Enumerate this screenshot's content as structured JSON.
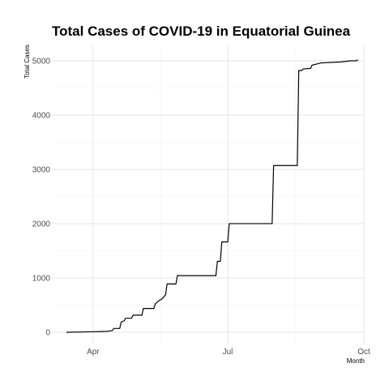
{
  "chart_data": {
    "type": "line",
    "title": "Total Cases of COVID-19 in Equatorial Guinea",
    "xlabel": "Month",
    "ylabel": "Total Cases",
    "x_ticks": [
      {
        "date": "2020-04-01",
        "label": "Apr"
      },
      {
        "date": "2020-07-01",
        "label": "Jul"
      },
      {
        "date": "2020-10-01",
        "label": "Oct"
      }
    ],
    "y_ticks": [
      0,
      1000,
      2000,
      3000,
      4000,
      5000
    ],
    "xlim": [
      "2020-03-14",
      "2020-10-01"
    ],
    "ylim": [
      0,
      5000
    ],
    "grid": true,
    "x": [
      "2020-03-14",
      "2020-03-24",
      "2020-04-01",
      "2020-04-10",
      "2020-04-14",
      "2020-04-15",
      "2020-04-19",
      "2020-04-20",
      "2020-04-22",
      "2020-04-23",
      "2020-04-27",
      "2020-04-28",
      "2020-05-04",
      "2020-05-05",
      "2020-05-12",
      "2020-05-13",
      "2020-05-16",
      "2020-05-17",
      "2020-05-20",
      "2020-05-21",
      "2020-05-27",
      "2020-05-28",
      "2020-06-23",
      "2020-06-24",
      "2020-06-26",
      "2020-06-27",
      "2020-07-01",
      "2020-07-02",
      "2020-07-31",
      "2020-08-01",
      "2020-08-17",
      "2020-08-18",
      "2020-08-20",
      "2020-08-21",
      "2020-08-26",
      "2020-08-27",
      "2020-09-02",
      "2020-09-09",
      "2020-09-16",
      "2020-09-22",
      "2020-09-26",
      "2020-09-27"
    ],
    "series": [
      {
        "values": [
          0,
          5,
          10,
          16,
          30,
          70,
          70,
          190,
          210,
          258,
          258,
          315,
          315,
          439,
          439,
          522,
          594,
          600,
          690,
          890,
          890,
          1043,
          1043,
          1306,
          1306,
          1664,
          1664,
          2001,
          2001,
          3071,
          3071,
          4821,
          4821,
          4850,
          4860,
          4920,
          4960,
          4970,
          4980,
          5000,
          5000,
          5020
        ]
      }
    ]
  }
}
